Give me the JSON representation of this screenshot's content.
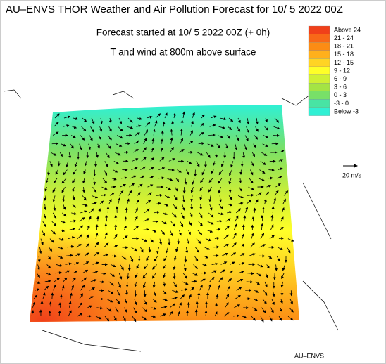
{
  "header": {
    "title": "AU–ENVS THOR Weather and Air Pollution Forecast for 10/ 5 2022  00Z",
    "subtitle": "Forecast started at 10/ 5 2022  00Z (+ 0h)",
    "field": "T and wind at 800m above surface"
  },
  "legend": {
    "items": [
      {
        "label": "Above   24",
        "color": "#f0401a"
      },
      {
        "label": "21 - 24",
        "color": "#f86818"
      },
      {
        "label": "18 - 21",
        "color": "#fc8c14"
      },
      {
        "label": "15 - 18",
        "color": "#ffb01c"
      },
      {
        "label": "12 - 15",
        "color": "#ffd424"
      },
      {
        "label": "9 - 12",
        "color": "#ffff28"
      },
      {
        "label": "6 -   9",
        "color": "#d0f034"
      },
      {
        "label": "3 -   6",
        "color": "#a4e444"
      },
      {
        "label": "0 -   3",
        "color": "#78e068"
      },
      {
        "label": "-3 -   0",
        "color": "#48e4a4"
      },
      {
        "label": "Below   -3",
        "color": "#30f0d4"
      }
    ]
  },
  "wind_scale": {
    "label": "20 m/s"
  },
  "footer": {
    "credit": "AU–ENVS"
  }
}
